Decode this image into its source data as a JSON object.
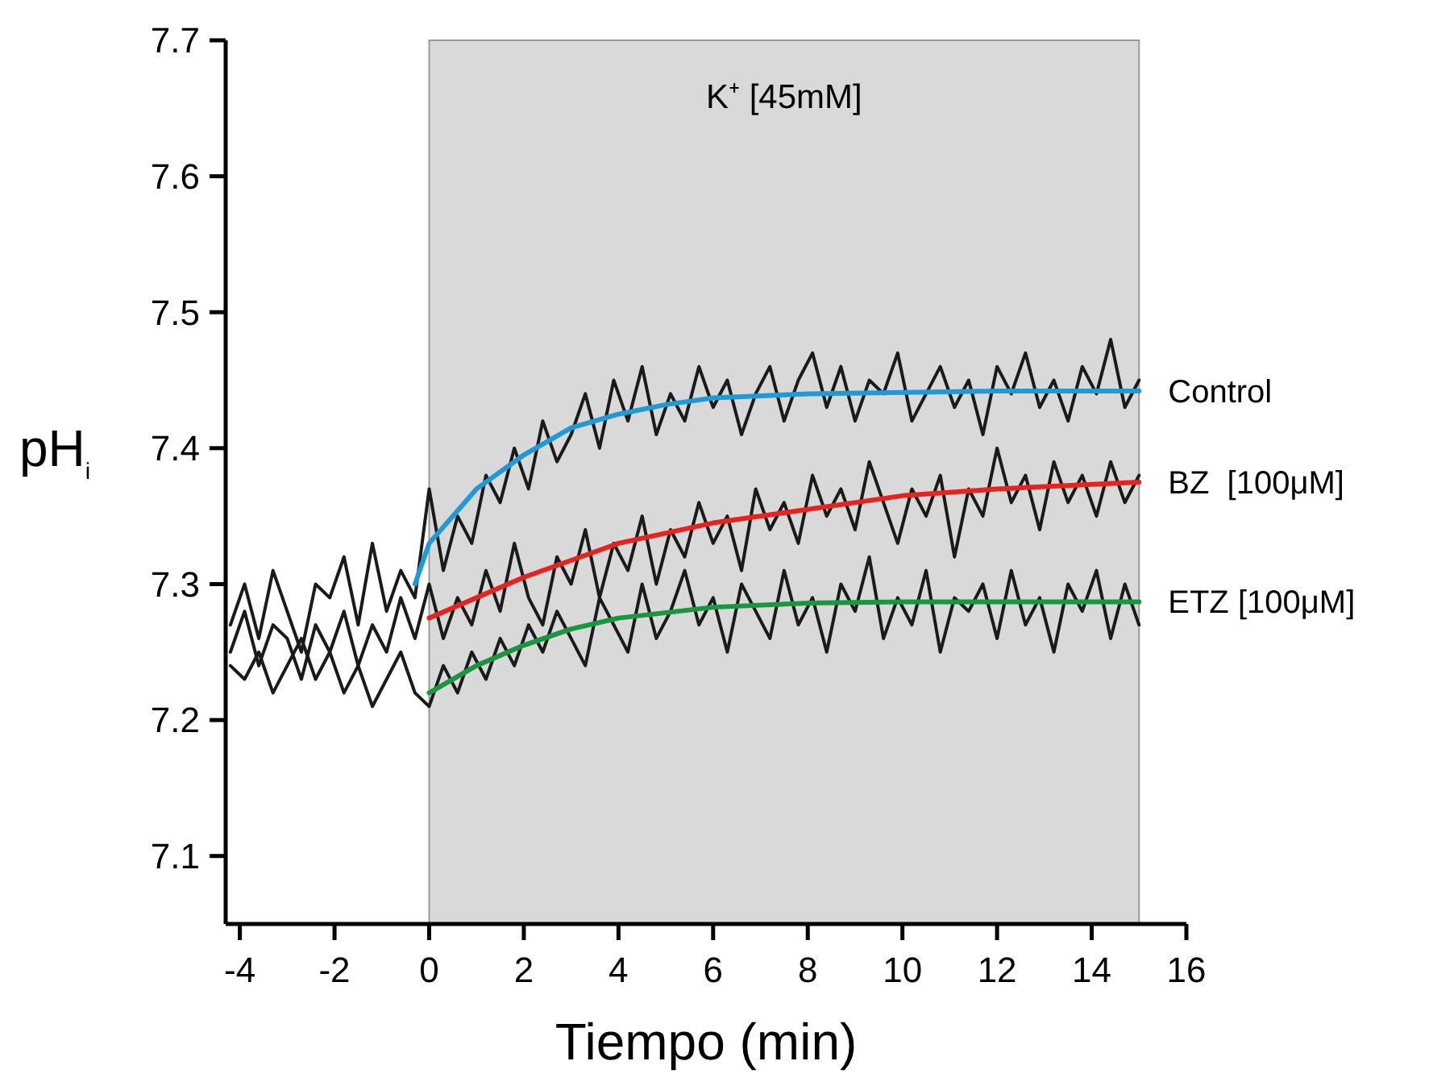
{
  "chart_data": {
    "type": "line",
    "xlabel": "Tiempo (min)",
    "ylabel": "pH$_{i}$",
    "x": [
      -4.2,
      -3.9,
      -3.6,
      -3.3,
      -3,
      -2.7,
      -2.4,
      -2.1,
      -1.8,
      -1.5,
      -1.2,
      -0.9,
      -0.6,
      -0.3,
      0,
      0.3,
      0.6,
      0.9,
      1.2,
      1.5,
      1.8,
      2.1,
      2.4,
      2.7,
      3,
      3.3,
      3.6,
      3.9,
      4.2,
      4.5,
      4.8,
      5.1,
      5.4,
      5.7,
      6,
      6.3,
      6.6,
      6.9,
      7.2,
      7.5,
      7.8,
      8.1,
      8.4,
      8.7,
      9,
      9.3,
      9.6,
      9.9,
      10.2,
      10.5,
      10.8,
      11.1,
      11.4,
      11.7,
      12,
      12.3,
      12.6,
      12.9,
      13.2,
      13.5,
      13.8,
      14.1,
      14.4,
      14.7,
      15
    ],
    "series": [
      {
        "color": "#1a1a1a",
        "values": [
          7.27,
          7.3,
          7.26,
          7.31,
          7.28,
          7.25,
          7.3,
          7.29,
          7.32,
          7.27,
          7.33,
          7.28,
          7.31,
          7.29,
          7.37,
          7.31,
          7.35,
          7.33,
          7.38,
          7.36,
          7.4,
          7.37,
          7.42,
          7.39,
          7.41,
          7.44,
          7.4,
          7.45,
          7.42,
          7.46,
          7.41,
          7.44,
          7.42,
          7.46,
          7.43,
          7.45,
          7.41,
          7.44,
          7.46,
          7.42,
          7.45,
          7.47,
          7.43,
          7.46,
          7.42,
          7.45,
          7.44,
          7.47,
          7.42,
          7.44,
          7.46,
          7.43,
          7.45,
          7.41,
          7.46,
          7.44,
          7.47,
          7.43,
          7.45,
          7.42,
          7.46,
          7.44,
          7.48,
          7.43,
          7.45
        ]
      },
      {
        "color": "#1a1a1a",
        "values": [
          7.25,
          7.28,
          7.24,
          7.27,
          7.26,
          7.23,
          7.27,
          7.25,
          7.28,
          7.24,
          7.27,
          7.25,
          7.29,
          7.26,
          7.3,
          7.26,
          7.29,
          7.27,
          7.31,
          7.28,
          7.33,
          7.29,
          7.27,
          7.32,
          7.3,
          7.34,
          7.29,
          7.33,
          7.31,
          7.35,
          7.3,
          7.34,
          7.32,
          7.36,
          7.33,
          7.35,
          7.31,
          7.37,
          7.34,
          7.36,
          7.33,
          7.38,
          7.35,
          7.37,
          7.34,
          7.39,
          7.36,
          7.33,
          7.37,
          7.35,
          7.38,
          7.32,
          7.37,
          7.35,
          7.4,
          7.36,
          7.38,
          7.34,
          7.39,
          7.36,
          7.38,
          7.35,
          7.39,
          7.36,
          7.38
        ]
      },
      {
        "color": "#1a1a1a",
        "values": [
          7.24,
          7.23,
          7.25,
          7.22,
          7.24,
          7.26,
          7.23,
          7.25,
          7.22,
          7.24,
          7.21,
          7.23,
          7.25,
          7.22,
          7.21,
          7.24,
          7.22,
          7.25,
          7.23,
          7.26,
          7.24,
          7.27,
          7.25,
          7.28,
          7.26,
          7.24,
          7.29,
          7.27,
          7.25,
          7.3,
          7.26,
          7.28,
          7.31,
          7.27,
          7.29,
          7.25,
          7.3,
          7.28,
          7.26,
          7.31,
          7.27,
          7.29,
          7.25,
          7.3,
          7.28,
          7.32,
          7.26,
          7.29,
          7.27,
          7.31,
          7.25,
          7.29,
          7.28,
          7.3,
          7.26,
          7.31,
          7.27,
          7.29,
          7.25,
          7.3,
          7.28,
          7.31,
          7.26,
          7.3,
          7.27
        ]
      },
      {
        "name": "Control",
        "color": "#1f9ad6",
        "x": [
          -0.3,
          0,
          1,
          2,
          3,
          4,
          5,
          6,
          8,
          10,
          12,
          15
        ],
        "values": [
          7.3,
          7.33,
          7.37,
          7.395,
          7.415,
          7.425,
          7.432,
          7.437,
          7.44,
          7.441,
          7.442,
          7.442
        ]
      },
      {
        "name": "BZ  [100μM]",
        "color": "#e8231f",
        "x": [
          0,
          2,
          4,
          6,
          8,
          10,
          12,
          15
        ],
        "values": [
          7.275,
          7.305,
          7.33,
          7.345,
          7.355,
          7.365,
          7.37,
          7.375
        ]
      },
      {
        "name": "ETZ [100μM]",
        "color": "#1a9641",
        "x": [
          0,
          1,
          2,
          3,
          4,
          6,
          8,
          10,
          15
        ],
        "values": [
          7.22,
          7.24,
          7.255,
          7.267,
          7.275,
          7.283,
          7.286,
          7.287,
          7.287
        ]
      }
    ],
    "bands": [
      {
        "axis": "x",
        "from": 0,
        "to": 15,
        "label": "K⁺ [45mM]",
        "color": "#d9d9d9"
      }
    ],
    "xlim": [
      -4.3,
      16
    ],
    "xticks": [
      -4,
      -2,
      0,
      2,
      4,
      6,
      8,
      10,
      12,
      14,
      16
    ],
    "ylim": [
      7.05,
      7.7
    ],
    "yticks": [
      7.1,
      7.2,
      7.3,
      7.4,
      7.5,
      7.6,
      7.7
    ],
    "grid": false
  }
}
